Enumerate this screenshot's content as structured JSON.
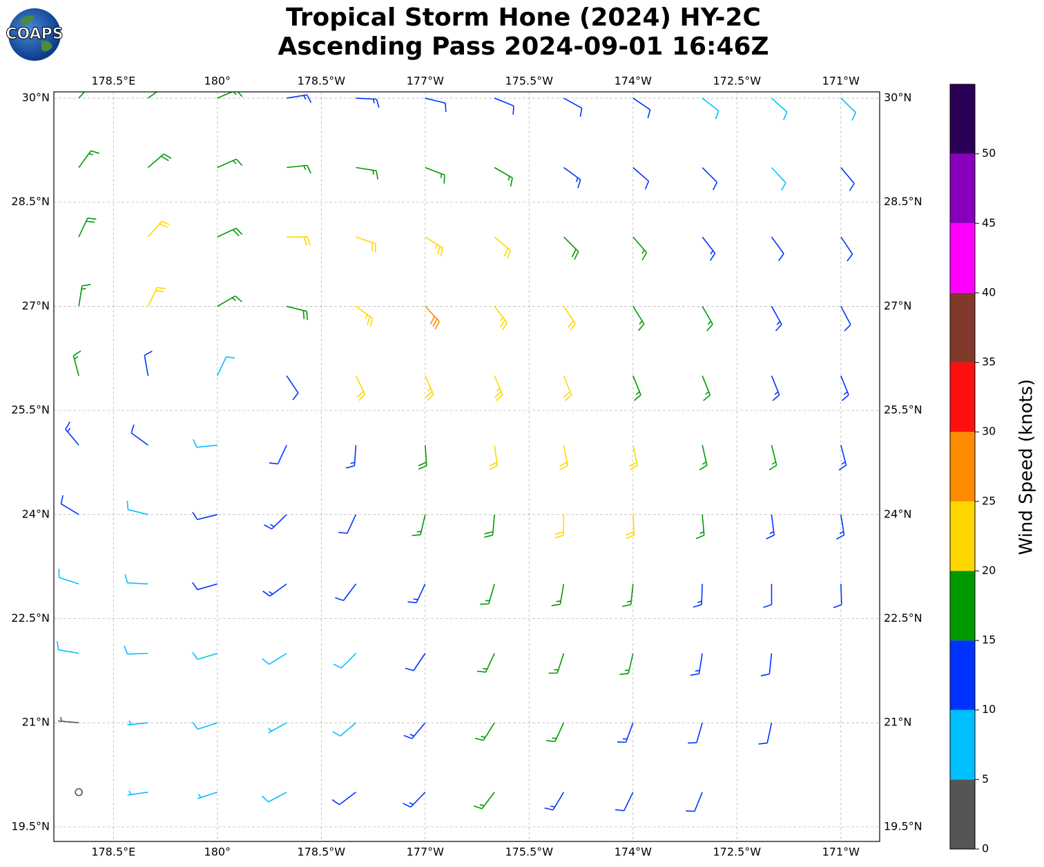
{
  "logo_text": "COAPS",
  "chart_data": {
    "type": "barbs",
    "title": "Tropical Storm Hone (2024) HY-2C",
    "subtitle": "Ascending Pass 2024-09-01 16:46Z",
    "xlim": [
      177.64,
      189.56
    ],
    "ylim": [
      19.29,
      30.09
    ],
    "xticks": [
      {
        "value": 178.5,
        "label": "178.5°E"
      },
      {
        "value": 180,
        "label": "180°"
      },
      {
        "value": 181.5,
        "label": "178.5°W"
      },
      {
        "value": 183,
        "label": "177°W"
      },
      {
        "value": 184.5,
        "label": "175.5°W"
      },
      {
        "value": 186,
        "label": "174°W"
      },
      {
        "value": 187.5,
        "label": "172.5°W"
      },
      {
        "value": 189,
        "label": "171°W"
      }
    ],
    "yticks": [
      {
        "value": 19.5,
        "label": "19.5°N"
      },
      {
        "value": 21,
        "label": "21°N"
      },
      {
        "value": 22.5,
        "label": "22.5°N"
      },
      {
        "value": 24,
        "label": "24°N"
      },
      {
        "value": 25.5,
        "label": "25.5°N"
      },
      {
        "value": 27,
        "label": "27°N"
      },
      {
        "value": 28.5,
        "label": "28.5°N"
      },
      {
        "value": 30,
        "label": "30°N"
      }
    ],
    "grid": true,
    "lons": [
      178,
      179,
      180,
      181,
      182,
      183,
      184,
      185,
      186,
      187,
      188,
      189
    ],
    "lats": [
      30,
      29,
      28,
      27,
      26,
      25,
      24,
      23,
      22,
      21,
      20
    ],
    "speed": [
      [
        16,
        17,
        16,
        14,
        13,
        12,
        12,
        11,
        10,
        9,
        8,
        8
      ],
      [
        17,
        18,
        17,
        15,
        17,
        16,
        15,
        14,
        12,
        10,
        9,
        10
      ],
      [
        18,
        21,
        19,
        20,
        22,
        24,
        22,
        19,
        16,
        14,
        12,
        11
      ],
      [
        17,
        21,
        17,
        18,
        24,
        28,
        24,
        20,
        17,
        15,
        13,
        12
      ],
      [
        16,
        12,
        8,
        12,
        20,
        24,
        24,
        20,
        17,
        16,
        14,
        13
      ],
      [
        13,
        10,
        8,
        12,
        14,
        18,
        22,
        22,
        20,
        16,
        15,
        14
      ],
      [
        11,
        9,
        11,
        13,
        12,
        16,
        19,
        20,
        21,
        17,
        14,
        13
      ],
      [
        8,
        8,
        12,
        14,
        11,
        14,
        17,
        17,
        15,
        13,
        12,
        11
      ],
      [
        8,
        8,
        9,
        8,
        8,
        12,
        16,
        17,
        15,
        13,
        12,
        null
      ],
      [
        4,
        6,
        8,
        7,
        9,
        13,
        16,
        15,
        13,
        12,
        11,
        null
      ],
      [
        2,
        5,
        7,
        8,
        11,
        14,
        15,
        13,
        12,
        11,
        null,
        null
      ]
    ],
    "direction": [
      [
        42,
        54,
        67,
        81,
        93,
        104,
        112,
        119,
        124,
        128,
        132,
        134
      ],
      [
        36,
        49,
        66,
        84,
        99,
        111,
        120,
        126,
        131,
        135,
        137,
        140
      ],
      [
        25,
        41,
        65,
        90,
        109,
        122,
        130,
        135,
        139,
        142,
        144,
        146
      ],
      [
        9,
        25,
        60,
        104,
        126,
        137,
        142,
        146,
        148,
        150,
        151,
        152
      ],
      [
        345,
        350,
        25,
        146,
        154,
        156,
        157,
        158,
        158,
        158,
        158,
        158
      ],
      [
        320,
        306,
        264,
        205,
        184,
        176,
        172,
        169,
        168,
        167,
        166,
        165
      ],
      [
        301,
        284,
        256,
        226,
        205,
        193,
        185,
        181,
        177,
        175,
        173,
        171
      ],
      [
        288,
        273,
        254,
        234,
        217,
        205,
        196,
        190,
        186,
        182,
        180,
        178
      ],
      [
        280,
        268,
        253,
        238,
        225,
        214,
        205,
        198,
        193,
        189,
        186,
        null
      ],
      [
        275,
        264,
        252,
        241,
        230,
        220,
        212,
        205,
        200,
        196,
        192,
        null
      ],
      [
        271,
        262,
        252,
        242,
        233,
        224,
        217,
        211,
        206,
        202,
        null,
        null
      ]
    ],
    "colorbar": {
      "label": "Wind Speed (knots)",
      "bounds": [
        0,
        5,
        10,
        15,
        20,
        25,
        30,
        35,
        40,
        45,
        50,
        55
      ],
      "colors": [
        "#555555",
        "#00bfff",
        "#0033ff",
        "#009900",
        "#ffd700",
        "#ff8c00",
        "#ff1010",
        "#80392a",
        "#ff00ff",
        "#8800bb",
        "#2a0055"
      ],
      "ticks": [
        0,
        5,
        10,
        15,
        20,
        25,
        30,
        35,
        40,
        45,
        50
      ]
    }
  }
}
